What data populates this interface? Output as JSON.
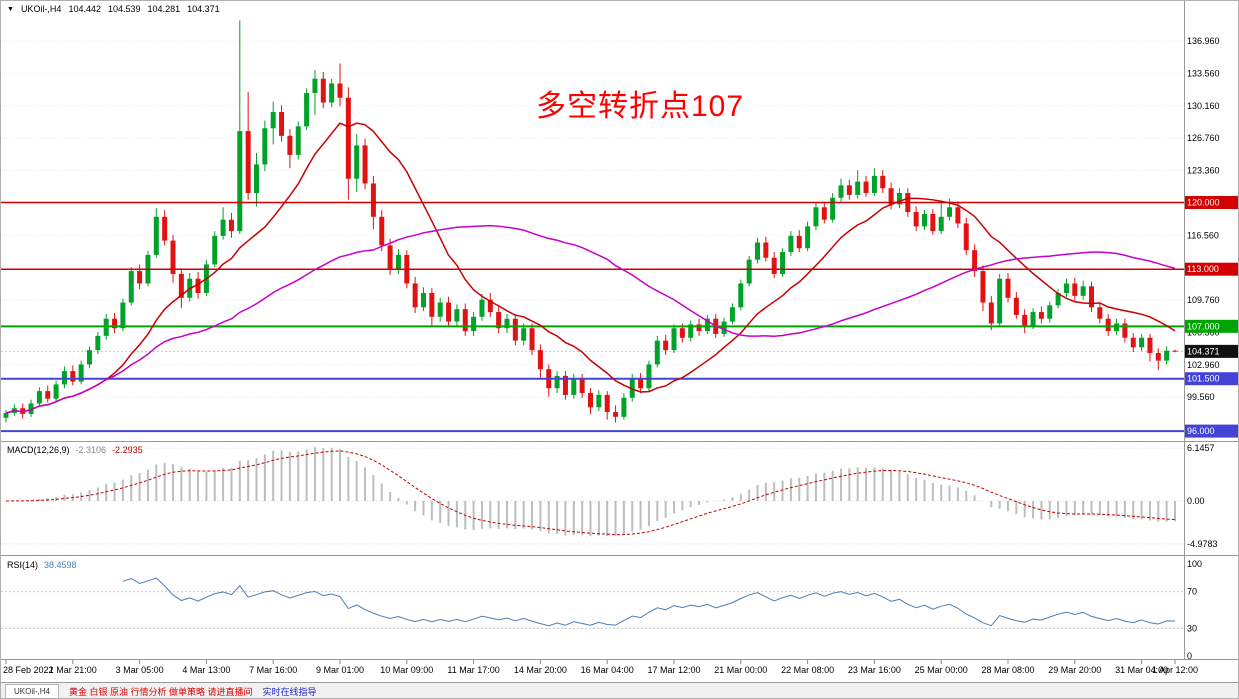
{
  "header": {
    "symbol": "UKOil-,H4",
    "open": "104.442",
    "high": "104.539",
    "low": "104.281",
    "close": "104.371"
  },
  "annotation": {
    "text": "多空转折点107",
    "color": "#ff0000"
  },
  "colors": {
    "bull": "#00a22a",
    "bear": "#e01212",
    "ma_fast": "#c80000",
    "ma_slow": "#c800c8",
    "macd_hist": "#bdbdbd",
    "macd_signal": "#c80000",
    "rsi": "#4a7fb5",
    "grid": "#ececec",
    "axis_text": "#000000",
    "separator": "#9a9a9a",
    "current_badge": "#111111"
  },
  "price_axis": {
    "grid": [
      "136.960",
      "133.560",
      "130.160",
      "126.760",
      "123.360",
      "116.560",
      "109.760",
      "106.360",
      "102.960",
      "99.560"
    ],
    "current": {
      "label": "104.371",
      "price": 104.371
    }
  },
  "indicators": {
    "macd": {
      "name": "MACD(12,26,9)",
      "value": "-2.3106",
      "signal": "-2.2935",
      "params": {
        "fast": 12,
        "slow": 26,
        "signal": 9
      },
      "axis": [
        {
          "label": "6.1457",
          "v": 6.1457
        },
        {
          "label": "0.00",
          "v": 0
        },
        {
          "label": "-4.9783",
          "v": -4.9783
        }
      ]
    },
    "rsi": {
      "name": "RSI(14)",
      "value": "38.4598",
      "period": 14,
      "levels": [
        70,
        30
      ],
      "axis": [
        {
          "label": "100",
          "v": 100
        },
        {
          "label": "70",
          "v": 70
        },
        {
          "label": "30",
          "v": 30
        },
        {
          "label": "0",
          "v": 0
        }
      ]
    }
  },
  "time_axis": [
    {
      "i": 0,
      "label": "28 Feb 2022"
    },
    {
      "i": 8,
      "label": "1 Mar 21:00"
    },
    {
      "i": 16,
      "label": "3 Mar 05:00"
    },
    {
      "i": 24,
      "label": "4 Mar 13:00"
    },
    {
      "i": 32,
      "label": "7 Mar 16:00"
    },
    {
      "i": 40,
      "label": "9 Mar 01:00"
    },
    {
      "i": 48,
      "label": "10 Mar 09:00"
    },
    {
      "i": 56,
      "label": "11 Mar 17:00"
    },
    {
      "i": 64,
      "label": "14 Mar 20:00"
    },
    {
      "i": 72,
      "label": "16 Mar 04:00"
    },
    {
      "i": 80,
      "label": "17 Mar 12:00"
    },
    {
      "i": 88,
      "label": "21 Mar 00:00"
    },
    {
      "i": 96,
      "label": "22 Mar 08:00"
    },
    {
      "i": 104,
      "label": "23 Mar 16:00"
    },
    {
      "i": 112,
      "label": "25 Mar 00:00"
    },
    {
      "i": 120,
      "label": "28 Mar 08:00"
    },
    {
      "i": 128,
      "label": "29 Mar 20:00"
    },
    {
      "i": 136,
      "label": "31 Mar 04:00"
    },
    {
      "i": 140,
      "label": "1 Apr 12:00"
    }
  ],
  "footer": {
    "tab": "UKOil-,H4",
    "ticker_red": "黄金 白银 原油 行情分析 做单策略 请进直播间",
    "ticker_blue": "实时在线指导"
  },
  "chart_data": {
    "type": "candlestick",
    "symbol": "UKOil-",
    "timeframe": "H4",
    "title": "多空转折点107",
    "y_axis": {
      "top_price": 141.2,
      "bottom_price": 95.0,
      "grid_step": 3.4
    },
    "levels": [
      {
        "price": 120.0,
        "label": "120.000",
        "color": "#d40000",
        "w": 1.5
      },
      {
        "price": 113.0,
        "label": "113.000",
        "color": "#d40000",
        "w": 1.5
      },
      {
        "price": 107.0,
        "label": "107.000",
        "color": "#00a400",
        "w": 2
      },
      {
        "price": 101.5,
        "label": "101.500",
        "color": "#4343d8",
        "w": 2
      },
      {
        "price": 96.0,
        "label": "96.000",
        "color": "#4343d8",
        "w": 2
      }
    ],
    "overlays": [
      {
        "type": "sma",
        "period": 13,
        "color": "#c80000"
      },
      {
        "type": "sma",
        "period": 45,
        "color": "#c800c8"
      }
    ],
    "candles": [
      [
        97.4,
        98.2,
        96.9,
        97.9
      ],
      [
        97.9,
        98.8,
        97.6,
        98.4
      ],
      [
        98.4,
        98.9,
        97.3,
        97.8
      ],
      [
        97.8,
        99.3,
        97.5,
        98.9
      ],
      [
        98.9,
        100.6,
        98.6,
        100.2
      ],
      [
        100.2,
        100.8,
        99.0,
        99.4
      ],
      [
        99.4,
        101.3,
        99.1,
        100.9
      ],
      [
        100.9,
        102.8,
        100.5,
        102.3
      ],
      [
        102.3,
        102.9,
        100.8,
        101.2
      ],
      [
        101.2,
        103.4,
        100.9,
        103.0
      ],
      [
        103.0,
        104.9,
        102.6,
        104.5
      ],
      [
        104.5,
        106.4,
        104.1,
        106.0
      ],
      [
        106.0,
        108.3,
        105.6,
        107.8
      ],
      [
        107.8,
        108.4,
        106.3,
        106.8
      ],
      [
        106.8,
        109.9,
        106.5,
        109.5
      ],
      [
        109.5,
        113.2,
        109.2,
        112.8
      ],
      [
        112.8,
        113.5,
        110.9,
        111.5
      ],
      [
        111.5,
        114.9,
        111.2,
        114.5
      ],
      [
        114.5,
        119.4,
        114.2,
        118.5
      ],
      [
        118.5,
        119.2,
        115.5,
        116.0
      ],
      [
        116.0,
        116.6,
        111.6,
        112.5
      ],
      [
        112.5,
        113.1,
        108.9,
        110.0
      ],
      [
        110.0,
        112.6,
        109.6,
        112.0
      ],
      [
        112.0,
        112.7,
        109.9,
        110.5
      ],
      [
        110.5,
        114.0,
        110.2,
        113.5
      ],
      [
        113.5,
        117.0,
        113.2,
        116.5
      ],
      [
        116.5,
        119.5,
        116.1,
        118.2
      ],
      [
        118.2,
        118.9,
        116.3,
        117.0
      ],
      [
        117.0,
        139.13,
        116.7,
        127.5
      ],
      [
        127.5,
        131.6,
        120.3,
        121.0
      ],
      [
        121.0,
        125.2,
        119.6,
        124.0
      ],
      [
        124.0,
        128.6,
        123.3,
        127.8
      ],
      [
        127.8,
        130.6,
        126.1,
        129.5
      ],
      [
        129.5,
        130.2,
        126.4,
        127.0
      ],
      [
        127.0,
        127.7,
        123.6,
        125.0
      ],
      [
        125.0,
        128.5,
        124.5,
        128.0
      ],
      [
        128.0,
        132.0,
        127.6,
        131.5
      ],
      [
        131.5,
        133.9,
        129.2,
        133.0
      ],
      [
        133.0,
        133.7,
        129.9,
        130.5
      ],
      [
        130.5,
        133.0,
        130.0,
        132.5
      ],
      [
        132.5,
        134.6,
        130.1,
        131.0
      ],
      [
        131.0,
        132.1,
        120.3,
        122.5
      ],
      [
        122.5,
        127.2,
        121.1,
        126.0
      ],
      [
        126.0,
        126.7,
        121.4,
        122.0
      ],
      [
        122.0,
        122.8,
        117.2,
        118.5
      ],
      [
        118.5,
        119.2,
        114.9,
        115.5
      ],
      [
        115.5,
        116.2,
        112.4,
        113.0
      ],
      [
        113.0,
        115.1,
        112.5,
        114.5
      ],
      [
        114.5,
        115.0,
        111.0,
        111.5
      ],
      [
        111.5,
        112.2,
        108.4,
        109.0
      ],
      [
        109.0,
        111.1,
        108.6,
        110.5
      ],
      [
        110.5,
        111.0,
        107.1,
        108.0
      ],
      [
        108.0,
        110.0,
        107.5,
        109.5
      ],
      [
        109.5,
        110.1,
        107.0,
        107.5
      ],
      [
        107.5,
        109.3,
        107.0,
        108.8
      ],
      [
        108.8,
        109.4,
        106.0,
        106.5
      ],
      [
        106.5,
        108.5,
        106.0,
        108.0
      ],
      [
        108.0,
        110.4,
        107.6,
        109.8
      ],
      [
        109.8,
        110.5,
        108.0,
        108.5
      ],
      [
        108.5,
        109.1,
        106.3,
        106.8
      ],
      [
        106.8,
        108.3,
        106.3,
        107.8
      ],
      [
        107.8,
        108.3,
        105.0,
        105.5
      ],
      [
        105.5,
        107.3,
        105.0,
        106.8
      ],
      [
        106.8,
        107.3,
        104.0,
        104.5
      ],
      [
        104.5,
        105.1,
        101.6,
        102.5
      ],
      [
        102.5,
        103.0,
        99.6,
        100.5
      ],
      [
        100.5,
        102.3,
        100.0,
        101.8
      ],
      [
        101.8,
        102.3,
        99.3,
        99.8
      ],
      [
        99.8,
        102.0,
        99.4,
        101.5
      ],
      [
        101.5,
        102.0,
        99.5,
        100.0
      ],
      [
        100.0,
        100.5,
        97.8,
        98.5
      ],
      [
        98.5,
        100.3,
        98.1,
        99.8
      ],
      [
        99.8,
        100.2,
        97.2,
        98.0
      ],
      [
        98.0,
        98.7,
        96.9,
        97.5
      ],
      [
        97.5,
        100.0,
        97.2,
        99.5
      ],
      [
        99.5,
        102.0,
        99.1,
        101.5
      ],
      [
        101.5,
        102.1,
        100.0,
        100.5
      ],
      [
        100.5,
        103.4,
        100.2,
        103.0
      ],
      [
        103.0,
        106.0,
        102.7,
        105.5
      ],
      [
        105.5,
        106.1,
        104.0,
        104.5
      ],
      [
        104.5,
        107.2,
        104.2,
        106.8
      ],
      [
        106.8,
        107.3,
        105.3,
        105.8
      ],
      [
        105.8,
        107.6,
        105.4,
        107.2
      ],
      [
        107.2,
        107.8,
        106.0,
        106.5
      ],
      [
        106.5,
        108.2,
        106.2,
        107.8
      ],
      [
        107.8,
        108.3,
        105.8,
        106.2
      ],
      [
        106.2,
        107.9,
        105.9,
        107.5
      ],
      [
        107.5,
        109.4,
        107.2,
        109.0
      ],
      [
        109.0,
        111.9,
        108.7,
        111.5
      ],
      [
        111.5,
        114.4,
        111.2,
        114.0
      ],
      [
        114.0,
        116.3,
        113.6,
        115.8
      ],
      [
        115.8,
        116.4,
        113.8,
        114.2
      ],
      [
        114.2,
        114.8,
        112.1,
        112.5
      ],
      [
        112.5,
        115.2,
        112.2,
        114.8
      ],
      [
        114.8,
        117.0,
        114.4,
        116.5
      ],
      [
        116.5,
        117.1,
        114.8,
        115.2
      ],
      [
        115.2,
        118.0,
        114.9,
        117.5
      ],
      [
        117.5,
        120.0,
        117.1,
        119.5
      ],
      [
        119.5,
        120.1,
        117.8,
        118.2
      ],
      [
        118.2,
        121.0,
        117.9,
        120.5
      ],
      [
        120.5,
        122.5,
        120.1,
        121.8
      ],
      [
        121.8,
        122.4,
        120.3,
        120.8
      ],
      [
        120.8,
        123.4,
        120.4,
        122.2
      ],
      [
        122.2,
        122.8,
        120.6,
        121.0
      ],
      [
        121.0,
        123.6,
        120.7,
        122.8
      ],
      [
        122.8,
        123.4,
        121.0,
        121.5
      ],
      [
        121.5,
        122.1,
        119.3,
        119.8
      ],
      [
        119.8,
        121.5,
        119.4,
        121.0
      ],
      [
        121.0,
        121.5,
        118.5,
        119.0
      ],
      [
        119.0,
        119.6,
        117.0,
        117.5
      ],
      [
        117.5,
        119.2,
        117.1,
        118.8
      ],
      [
        118.8,
        119.3,
        116.6,
        117.0
      ],
      [
        117.0,
        120.0,
        116.7,
        118.5
      ],
      [
        118.5,
        120.4,
        118.1,
        119.5
      ],
      [
        119.5,
        120.1,
        117.3,
        117.8
      ],
      [
        117.8,
        118.4,
        114.5,
        115.0
      ],
      [
        115.0,
        115.6,
        112.2,
        112.8
      ],
      [
        112.8,
        113.4,
        108.6,
        109.5
      ],
      [
        109.5,
        110.2,
        106.6,
        107.3
      ],
      [
        107.3,
        112.5,
        107.0,
        112.0
      ],
      [
        112.0,
        112.6,
        109.5,
        110.0
      ],
      [
        110.0,
        110.6,
        107.8,
        108.2
      ],
      [
        108.2,
        108.8,
        106.3,
        107.0
      ],
      [
        107.0,
        108.9,
        106.7,
        108.5
      ],
      [
        108.5,
        109.1,
        107.3,
        107.8
      ],
      [
        107.8,
        109.6,
        107.4,
        109.2
      ],
      [
        109.2,
        110.9,
        108.9,
        110.5
      ],
      [
        110.5,
        112.0,
        110.1,
        111.5
      ],
      [
        111.5,
        112.1,
        109.7,
        110.2
      ],
      [
        110.2,
        111.8,
        109.8,
        111.2
      ],
      [
        111.2,
        111.7,
        108.5,
        109.0
      ],
      [
        109.0,
        109.5,
        107.3,
        107.8
      ],
      [
        107.8,
        108.3,
        106.0,
        106.5
      ],
      [
        106.5,
        107.8,
        106.1,
        107.3
      ],
      [
        107.3,
        107.8,
        105.3,
        105.8
      ],
      [
        105.8,
        106.3,
        104.3,
        104.8
      ],
      [
        104.8,
        106.2,
        104.4,
        105.8
      ],
      [
        105.8,
        106.2,
        103.3,
        104.2
      ],
      [
        104.2,
        104.7,
        102.4,
        103.4
      ],
      [
        103.4,
        104.9,
        103.0,
        104.44
      ],
      [
        104.442,
        104.539,
        104.281,
        104.371
      ]
    ]
  }
}
